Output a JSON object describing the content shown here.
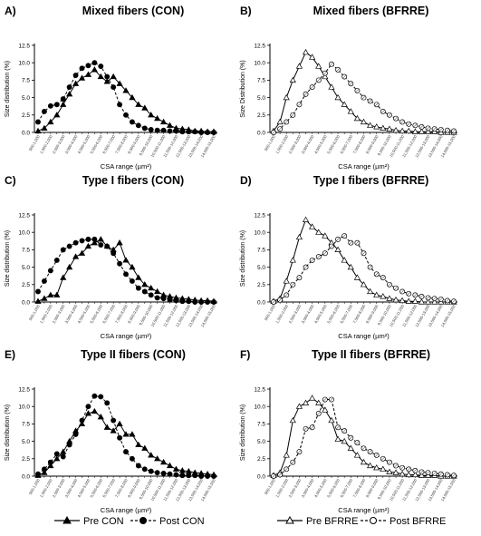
{
  "chart_data": [
    {
      "type": "line",
      "letter": "A)",
      "title": "Mixed fibers (CON)",
      "ylabel": "Size distribution (%)",
      "xlabel": "CSA range (µm²)",
      "ylim": [
        0,
        12.5
      ],
      "yticks": [
        "0.0",
        "2.5",
        "5.0",
        "7.5",
        "10.0",
        "12.5"
      ],
      "categories": [
        "500-1,000",
        "1,000-1,500",
        "1,500-2,000",
        "2,000-2,500",
        "2,500-3,000",
        "3,000-3,500",
        "3,500-4,000",
        "4,000-4,500",
        "4,500-5,000",
        "5,000-5,500",
        "5,500-6,000",
        "6,000-6,500",
        "6,500-7,000",
        "7,000-7,500",
        "7,500-8,000",
        "8,000-8,500",
        "8,500-9,000",
        "9,000-9,500",
        "9,500-10,000",
        "10,000-10,500",
        "10,500-11,000",
        "11,000-11,500",
        "11,500-12,000",
        "12,000-12,500",
        "12,500-13,000",
        "13,000-13,500",
        "13,500-14,000",
        "14,000-14,500",
        "14,500-15,000"
      ],
      "tick_labels": [
        "500-1,000",
        "1,500-2,000",
        "2,500-3,000",
        "3,500-4,000",
        "4,500-5,000",
        "5,500-6,000",
        "6,500-7,000",
        "7,500-8,000",
        "8,500-9,000",
        "9,500-10,000",
        "10,500-11,000",
        "11,500-12,000",
        "12,500-13,000",
        "13,500-14,000",
        "14,500-15,000"
      ],
      "series": [
        {
          "name": "Pre CON",
          "values": [
            0.2,
            0.6,
            1.5,
            2.5,
            4.0,
            5.5,
            7.0,
            7.8,
            8.3,
            9.0,
            8.0,
            7.3,
            8.0,
            7.0,
            6.0,
            5.0,
            4.0,
            3.5,
            2.5,
            2.0,
            1.5,
            1.0,
            0.6,
            0.5,
            0.4,
            0.2,
            0.2,
            0.1,
            0.1
          ]
        },
        {
          "name": "Post CON",
          "values": [
            1.5,
            3.0,
            3.8,
            4.0,
            4.8,
            6.5,
            8.2,
            9.2,
            9.6,
            10.0,
            9.5,
            8.0,
            6.5,
            4.0,
            2.5,
            1.5,
            1.0,
            0.6,
            0.4,
            0.3,
            0.3,
            0.2,
            0.2,
            0.1,
            0.1,
            0.1,
            0.0,
            0.0,
            0.0
          ]
        }
      ]
    },
    {
      "type": "line",
      "letter": "B)",
      "title": "Mixed fibers (BFRRE)",
      "ylabel": "Size Distribution (%)",
      "xlabel": "CSA range (µm²)",
      "ylim": [
        0,
        12.5
      ],
      "yticks": [
        "0.0",
        "2.5",
        "5.0",
        "7.5",
        "10.0",
        "12.5"
      ],
      "categories": [
        "500-1,000",
        "1,000-1,500",
        "1,500-2,000",
        "2,000-2,500",
        "2,500-3,000",
        "3,000-3,500",
        "3,500-4,000",
        "4,000-4,500",
        "4,500-5,000",
        "5,000-5,500",
        "5,500-6,000",
        "6,000-6,500",
        "6,500-7,000",
        "7,000-7,500",
        "7,500-8,000",
        "8,000-8,500",
        "8,500-9,000",
        "9,000-9,500",
        "9,500-10,000",
        "10,000-10,500",
        "10,500-11,000",
        "11,000-11,500",
        "11,500-12,000",
        "12,000-12,500",
        "12,500-13,000",
        "13,000-13,500",
        "13,500-14,000",
        "14,000-14,500",
        "14,500-15,000"
      ],
      "tick_labels": [
        "500-1,000",
        "1,500-2,000",
        "2,500-3,000",
        "3,500-4,000",
        "4,500-5,000",
        "5,500-6,000",
        "6,500-7,000",
        "7,500-8,000",
        "8,500-9,000",
        "9,500-10,000",
        "10,500-11,000",
        "11,500-12,000",
        "12,500-13,000",
        "13,500-14,000",
        "14,500-15,000"
      ],
      "series": [
        {
          "name": "Pre BFRRE",
          "values": [
            0.2,
            1.5,
            5.0,
            7.5,
            9.5,
            11.5,
            10.8,
            9.5,
            8.0,
            6.5,
            5.0,
            4.0,
            3.0,
            2.0,
            1.5,
            1.0,
            0.8,
            0.6,
            0.5,
            0.3,
            0.2,
            0.2,
            0.1,
            0.1,
            0.1,
            0.1,
            0.0,
            0.0,
            0.0
          ]
        },
        {
          "name": "Post BFRRE",
          "values": [
            0.0,
            0.5,
            1.5,
            2.5,
            4.0,
            5.5,
            6.5,
            7.5,
            8.5,
            9.8,
            9.0,
            8.0,
            7.0,
            6.0,
            5.0,
            4.5,
            4.0,
            3.0,
            2.5,
            2.0,
            1.5,
            1.2,
            1.0,
            0.8,
            0.6,
            0.5,
            0.4,
            0.3,
            0.2
          ]
        }
      ]
    },
    {
      "type": "line",
      "letter": "C)",
      "title": "Type I fibers (CON)",
      "ylabel": "Size distribution (%)",
      "xlabel": "CSA range (µm²)",
      "ylim": [
        0,
        12.5
      ],
      "yticks": [
        "0.0",
        "2.5",
        "5.0",
        "7.5",
        "10.0",
        "12.5"
      ],
      "categories": [
        "500-1,000",
        "1,000-1,500",
        "1,500-2,000",
        "2,000-2,500",
        "2,500-3,000",
        "3,000-3,500",
        "3,500-4,000",
        "4,000-4,500",
        "4,500-5,000",
        "5,000-5,500",
        "5,500-6,000",
        "6,000-6,500",
        "6,500-7,000",
        "7,000-7,500",
        "7,500-8,000",
        "8,000-8,500",
        "8,500-9,000",
        "9,000-9,500",
        "9,500-10,000",
        "10,000-10,500",
        "10,500-11,000",
        "11,000-11,500",
        "11,500-12,000",
        "12,000-12,500",
        "12,500-13,000",
        "13,000-13,500",
        "13,500-14,000",
        "14,000-14,500",
        "14,500-15,000"
      ],
      "tick_labels": [
        "500-1,000",
        "1,500-2,000",
        "2,500-3,000",
        "3,500-4,000",
        "4,500-5,000",
        "5,500-6,000",
        "6,500-7,000",
        "7,500-8,000",
        "8,500-9,000",
        "9,500-10,000",
        "10,500-11,000",
        "11,500-12,000",
        "12,500-13,000",
        "13,500-14,000",
        "14,500-15,000"
      ],
      "series": [
        {
          "name": "Pre CON",
          "values": [
            0.1,
            0.5,
            1.0,
            1.0,
            3.5,
            5.0,
            6.5,
            7.0,
            8.0,
            8.5,
            9.0,
            8.0,
            7.5,
            8.5,
            6.0,
            5.0,
            3.5,
            2.5,
            2.0,
            1.5,
            1.0,
            0.8,
            0.6,
            0.5,
            0.4,
            0.3,
            0.2,
            0.2,
            0.1
          ]
        },
        {
          "name": "Post CON",
          "values": [
            1.5,
            3.0,
            4.5,
            6.0,
            7.5,
            8.0,
            8.5,
            8.8,
            9.0,
            9.0,
            8.2,
            8.0,
            7.0,
            5.5,
            4.0,
            3.0,
            2.0,
            1.5,
            1.0,
            0.6,
            0.5,
            0.3,
            0.2,
            0.1,
            0.1,
            0.0,
            0.0,
            0.0,
            0.0
          ]
        }
      ]
    },
    {
      "type": "line",
      "letter": "D)",
      "title": "Type I fibers (BFRRE)",
      "ylabel": "Size distribution (%)",
      "xlabel": "CSA range (µm²)",
      "ylim": [
        0,
        12.5
      ],
      "yticks": [
        "0.0",
        "2.5",
        "5.0",
        "7.5",
        "10.0",
        "12.5"
      ],
      "categories": [
        "500-1,000",
        "1,000-1,500",
        "1,500-2,000",
        "2,000-2,500",
        "2,500-3,000",
        "3,000-3,500",
        "3,500-4,000",
        "4,000-4,500",
        "4,500-5,000",
        "5,000-5,500",
        "5,500-6,000",
        "6,000-6,500",
        "6,500-7,000",
        "7,000-7,500",
        "7,500-8,000",
        "8,000-8,500",
        "8,500-9,000",
        "9,000-9,500",
        "9,500-10,000",
        "10,000-10,500",
        "10,500-11,000",
        "11,000-11,500",
        "11,500-12,000",
        "12,000-12,500",
        "12,500-13,000",
        "13,000-13,500",
        "13,500-14,000",
        "14,000-14,500",
        "14,500-15,000"
      ],
      "tick_labels": [
        "500-1,000",
        "1,500-2,000",
        "2,500-3,000",
        "3,500-4,000",
        "4,500-5,000",
        "5,500-6,000",
        "6,500-7,000",
        "7,500-8,000",
        "8,500-9,000",
        "9,500-10,000",
        "10,500-11,000",
        "11,500-12,000",
        "12,500-13,000",
        "13,500-14,000",
        "14,500-15,000"
      ],
      "series": [
        {
          "name": "Pre BFRRE",
          "values": [
            0.1,
            0.5,
            3.0,
            6.0,
            9.3,
            11.8,
            10.8,
            10.0,
            9.5,
            8.5,
            7.5,
            6.0,
            5.0,
            3.5,
            2.5,
            1.5,
            1.0,
            0.8,
            0.5,
            0.3,
            0.2,
            0.1,
            0.1,
            0.0,
            0.0,
            0.0,
            0.0,
            0.0,
            0.0
          ]
        },
        {
          "name": "Post BFRRE",
          "values": [
            0.0,
            0.3,
            1.0,
            2.5,
            3.5,
            5.0,
            6.0,
            6.5,
            7.0,
            8.0,
            9.0,
            9.5,
            8.5,
            8.5,
            7.0,
            5.0,
            4.0,
            3.5,
            2.5,
            2.0,
            1.5,
            1.2,
            1.0,
            0.8,
            0.6,
            0.5,
            0.4,
            0.2,
            0.1
          ]
        }
      ]
    },
    {
      "type": "line",
      "letter": "E)",
      "title": "Type II fibers (CON)",
      "ylabel": "Size distribution (%)",
      "xlabel": "CSA range (µm²)",
      "ylim": [
        0,
        12.5
      ],
      "yticks": [
        "0.0",
        "2.5",
        "5.0",
        "7.5",
        "10.0",
        "12.5"
      ],
      "categories": [
        "500-1,000",
        "1,000-1,500",
        "1,500-2,000",
        "2,000-2,500",
        "2,500-3,000",
        "3,000-3,500",
        "3,500-4,000",
        "4,000-4,500",
        "4,500-5,000",
        "5,000-5,500",
        "5,500-6,000",
        "6,000-6,500",
        "6,500-7,000",
        "7,000-7,500",
        "7,500-8,000",
        "8,000-8,500",
        "8,500-9,000",
        "9,000-9,500",
        "9,500-10,000",
        "10,000-10,500",
        "10,500-11,000",
        "11,000-11,500",
        "11,500-12,000",
        "12,000-12,500",
        "12,500-13,000",
        "13,000-13,500",
        "13,500-14,000",
        "14,000-14,500",
        "14,500-15,000"
      ],
      "tick_labels": [
        "500-1,000",
        "1,500-2,000",
        "2,500-3,000",
        "3,500-4,000",
        "4,500-5,000",
        "5,500-6,000",
        "6,500-7,000",
        "7,500-8,000",
        "8,500-9,000",
        "9,500-10,000",
        "10,500-11,000",
        "11,500-12,000",
        "12,500-13,000",
        "13,500-14,000",
        "14,500-15,000"
      ],
      "series": [
        {
          "name": "Pre CON",
          "values": [
            0.1,
            0.5,
            1.5,
            2.5,
            3.5,
            5.0,
            6.5,
            7.5,
            9.0,
            9.3,
            8.5,
            7.0,
            6.5,
            7.5,
            6.0,
            6.0,
            4.5,
            4.0,
            3.0,
            2.5,
            2.0,
            1.5,
            1.0,
            0.8,
            0.7,
            0.5,
            0.4,
            0.3,
            0.2
          ]
        },
        {
          "name": "Post CON",
          "values": [
            0.3,
            1.0,
            2.0,
            3.2,
            2.8,
            4.5,
            6.0,
            8.0,
            10.0,
            11.5,
            11.4,
            10.5,
            8.0,
            5.5,
            3.5,
            2.5,
            1.5,
            1.0,
            0.7,
            0.5,
            0.4,
            0.3,
            0.2,
            0.1,
            0.1,
            0.1,
            0.0,
            0.0,
            0.0
          ]
        }
      ]
    },
    {
      "type": "line",
      "letter": "F)",
      "title": "Type II fibers (BFRRE)",
      "ylabel": "Size distribution (%)",
      "xlabel": "CSA range (µm²)",
      "ylim": [
        0,
        12.5
      ],
      "yticks": [
        "0.0",
        "2.5",
        "5.0",
        "7.5",
        "10.0",
        "12.5"
      ],
      "categories": [
        "500-1,000",
        "1,000-1,500",
        "1,500-2,000",
        "2,000-2,500",
        "2,500-3,000",
        "3,000-3,500",
        "3,500-4,000",
        "4,000-4,500",
        "4,500-5,000",
        "5,000-5,500",
        "5,500-6,000",
        "6,000-6,500",
        "6,500-7,000",
        "7,000-7,500",
        "7,500-8,000",
        "8,000-8,500",
        "8,500-9,000",
        "9,000-9,500",
        "9,500-10,000",
        "10,000-10,500",
        "10,500-11,000",
        "11,000-11,500",
        "11,500-12,000",
        "12,000-12,500",
        "12,500-13,000",
        "13,000-13,500",
        "13,500-14,000",
        "14,000-14,500",
        "14,500-15,000"
      ],
      "tick_labels": [
        "500-1,000",
        "1,500-2,000",
        "2,500-3,000",
        "3,500-4,000",
        "4,500-5,000",
        "5,500-6,000",
        "6,500-7,000",
        "7,500-8,000",
        "8,500-9,000",
        "9,500-10,000",
        "10,500-11,000",
        "11,500-12,000",
        "12,500-13,000",
        "13,500-14,000",
        "14,500-15,000"
      ],
      "series": [
        {
          "name": "Pre BFRRE",
          "values": [
            0.1,
            0.5,
            3.0,
            8.0,
            10.0,
            10.5,
            11.2,
            10.5,
            9.5,
            8.0,
            5.3,
            5.0,
            4.0,
            3.0,
            2.0,
            1.5,
            1.2,
            1.0,
            0.6,
            0.5,
            0.3,
            0.2,
            0.2,
            0.1,
            0.1,
            0.1,
            0.0,
            0.0,
            0.0
          ]
        },
        {
          "name": "Post BFRRE",
          "values": [
            0.0,
            0.2,
            1.0,
            2.0,
            3.5,
            6.8,
            7.0,
            9.0,
            11.0,
            11.0,
            7.0,
            6.5,
            5.5,
            4.8,
            4.0,
            3.5,
            3.0,
            2.5,
            2.0,
            1.5,
            1.2,
            1.0,
            0.8,
            0.6,
            0.5,
            0.4,
            0.3,
            0.2,
            0.1
          ]
        }
      ]
    }
  ],
  "legend": [
    {
      "label": "Pre CON",
      "marker": "filled-triangle",
      "dash": false
    },
    {
      "label": "Post CON",
      "marker": "filled-circle",
      "dash": true
    },
    {
      "label": "Pre BFRRE",
      "marker": "open-triangle",
      "dash": false
    },
    {
      "label": "Post BFRRE",
      "marker": "open-circle",
      "dash": true
    }
  ]
}
